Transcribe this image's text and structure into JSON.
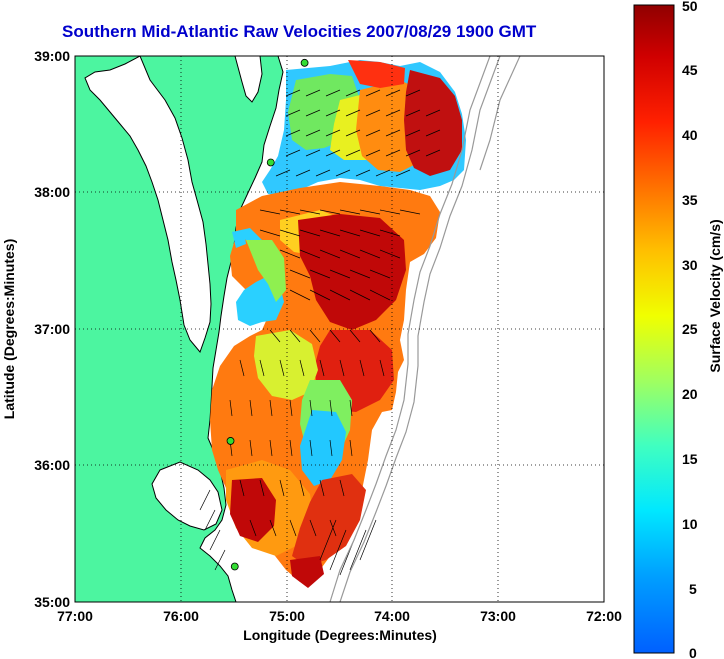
{
  "title": "Southern Mid-Atlantic Raw Velocities 2007/08/29 1900 GMT",
  "axes": {
    "xlabel": "Longitude (Degrees:Minutes)",
    "ylabel": "Latitude (Degrees:Minutes)",
    "xticks": [
      "77:00",
      "76:00",
      "75:00",
      "74:00",
      "73:00",
      "72:00"
    ],
    "yticks": [
      "39:00",
      "38:00",
      "37:00",
      "36:00",
      "35:00"
    ],
    "xlim": [
      -77,
      -72
    ],
    "ylim": [
      35,
      39
    ],
    "grid": "dotted"
  },
  "colorbar": {
    "label": "Surface Velocity (cm/s)",
    "ticks": [
      "50",
      "45",
      "40",
      "35",
      "30",
      "25",
      "20",
      "15",
      "10",
      "5",
      "0"
    ],
    "range": [
      0,
      50
    ],
    "colormap": "jet"
  },
  "colors": {
    "land": "#4cf5a0",
    "title": "#0000cc",
    "coastline": "#000000",
    "bathymetry": "#999999",
    "station_marker": "#33dd33"
  },
  "stations": [
    {
      "lon": -74.83,
      "lat": 38.95
    },
    {
      "lon": -75.15,
      "lat": 38.22
    },
    {
      "lon": -75.53,
      "lat": 36.18
    },
    {
      "lon": -75.49,
      "lat": 35.26
    }
  ]
}
